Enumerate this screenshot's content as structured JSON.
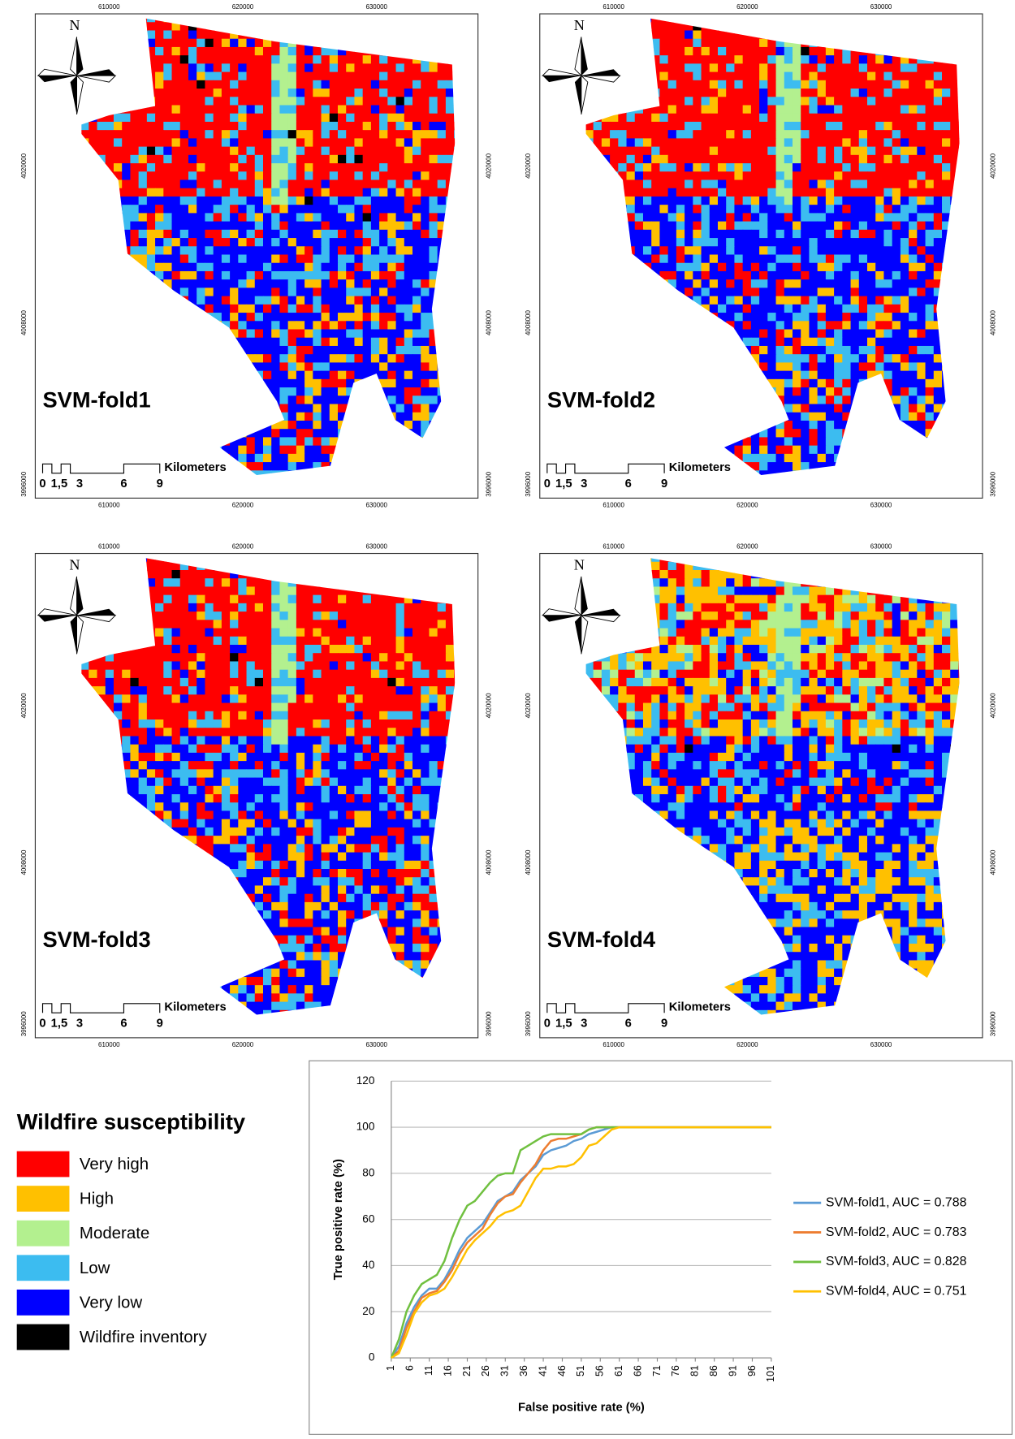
{
  "maps": {
    "north": "N",
    "x_labels": [
      "610000",
      "620000",
      "630000"
    ],
    "y_labels": [
      "4020000",
      "4008000",
      "3996000"
    ],
    "scale_labels": [
      "0",
      "1,5",
      "3",
      "6",
      "9"
    ],
    "scale_unit": "Kilometers",
    "titles": [
      "SVM-fold1",
      "SVM-fold2",
      "SVM-fold3",
      "SVM-fold4"
    ]
  },
  "legend": {
    "title": "Wildfire susceptibility",
    "items": [
      {
        "label": "Very high",
        "color": "#ff0000"
      },
      {
        "label": "High",
        "color": "#ffc000"
      },
      {
        "label": "Moderate",
        "color": "#b3f08f"
      },
      {
        "label": "Low",
        "color": "#3cbcf0"
      },
      {
        "label": "Very low",
        "color": "#0000ff"
      },
      {
        "label": "Wildfire inventory",
        "color": "#000000"
      }
    ]
  },
  "chart_data": {
    "type": "line",
    "x_label": "False positive rate (%)",
    "y_label": "True positive rate (%)",
    "x": [
      1,
      3,
      5,
      7,
      9,
      11,
      13,
      15,
      17,
      19,
      21,
      23,
      25,
      27,
      29,
      31,
      33,
      35,
      37,
      39,
      41,
      43,
      45,
      47,
      49,
      51,
      53,
      55,
      57,
      59,
      61,
      101
    ],
    "series": [
      {
        "name": "SVM-fold1, AUC = 0.788",
        "color": "#5b9bd5",
        "values": [
          0,
          5,
          15,
          22,
          27,
          30,
          30,
          34,
          40,
          47,
          52,
          55,
          58,
          63,
          68,
          70,
          72,
          77,
          80,
          83,
          88,
          90,
          91,
          92,
          94,
          95,
          97,
          98,
          99,
          100,
          100,
          100
        ]
      },
      {
        "name": "SVM-fold2, AUC = 0.783",
        "color": "#ed7d31",
        "values": [
          0,
          3,
          13,
          20,
          26,
          28,
          29,
          33,
          38,
          45,
          50,
          53,
          56,
          62,
          67,
          70,
          71,
          76,
          80,
          84,
          90,
          94,
          95,
          95,
          96,
          97,
          99,
          100,
          100,
          100,
          100,
          100
        ]
      },
      {
        "name": "SVM-fold3, AUC = 0.828",
        "color": "#70c040",
        "values": [
          0,
          8,
          20,
          27,
          32,
          34,
          36,
          42,
          52,
          60,
          66,
          68,
          72,
          76,
          79,
          80,
          80,
          90,
          92,
          94,
          96,
          97,
          97,
          97,
          97,
          97,
          99,
          100,
          100,
          100,
          100,
          100
        ]
      },
      {
        "name": "SVM-fold4, AUC = 0.751",
        "color": "#ffc000",
        "values": [
          0,
          2,
          10,
          19,
          24,
          27,
          28,
          30,
          35,
          41,
          47,
          51,
          54,
          57,
          61,
          63,
          64,
          66,
          72,
          78,
          82,
          82,
          83,
          83,
          84,
          87,
          92,
          93,
          96,
          99,
          100,
          100
        ]
      }
    ],
    "xlim": [
      1,
      101
    ],
    "xticks": [
      1,
      6,
      11,
      16,
      21,
      26,
      31,
      36,
      41,
      46,
      51,
      56,
      61,
      66,
      71,
      76,
      81,
      86,
      91,
      96,
      101
    ],
    "ylim": [
      0,
      120
    ],
    "yticks": [
      0,
      20,
      40,
      60,
      80,
      100,
      120
    ],
    "grid": true
  }
}
